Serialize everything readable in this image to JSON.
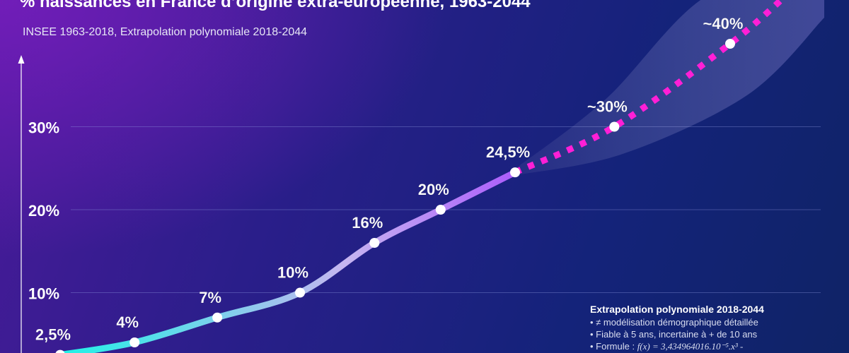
{
  "header": {
    "title": "% naissances en France d’origine extra-européenne, 1963-2044",
    "subtitle": "INSEE 1963-2018, Extrapolation polynomiale 2018-2044"
  },
  "note": {
    "title": "Extrapolation polynomiale 2018-2044",
    "lines": [
      "• ≠ modélisation démographique détaillée",
      "• Fiable à 5 ans, incertaine à + de 10 ans"
    ],
    "formula_prefix": "• Formule : ",
    "formula": "f(x) = 3,434964016.10⁻⁵.x³ -"
  },
  "chart_data": {
    "type": "line",
    "title": "% naissances en France d’origine extra-européenne, 1963-2044",
    "subtitle": "INSEE 1963-2018, Extrapolation polynomiale 2018-2044",
    "y_ticks": [
      "10%",
      "20%",
      "30%"
    ],
    "ylim": [
      0,
      40
    ],
    "grid": true,
    "colors": {
      "observed_start": "#1ff2e6",
      "observed_mid": "#c6b6f0",
      "observed_end": "#a23cff",
      "projection": "#ff1fd6",
      "point": "#ffffff"
    },
    "series": [
      {
        "points": [
          {
            "x": 1963,
            "y": 2.5,
            "label": "2,5%"
          },
          {
            "x": 1972,
            "y": 4,
            "label": "4%"
          },
          {
            "x": 1982,
            "y": 7,
            "label": "7%"
          },
          {
            "x": 1992,
            "y": 10,
            "label": "10%"
          },
          {
            "x": 2001,
            "y": 16,
            "label": "16%"
          },
          {
            "x": 2009,
            "y": 20,
            "label": "20%"
          },
          {
            "x": 2018,
            "y": 24.5,
            "label": "24,5%"
          }
        ]
      },
      {
        "points": [
          {
            "x": 2018,
            "y": 24.5
          },
          {
            "x": 2030,
            "y": 30,
            "label": "~30%"
          },
          {
            "x": 2044,
            "y": 40,
            "label": "~40%"
          }
        ]
      }
    ]
  }
}
